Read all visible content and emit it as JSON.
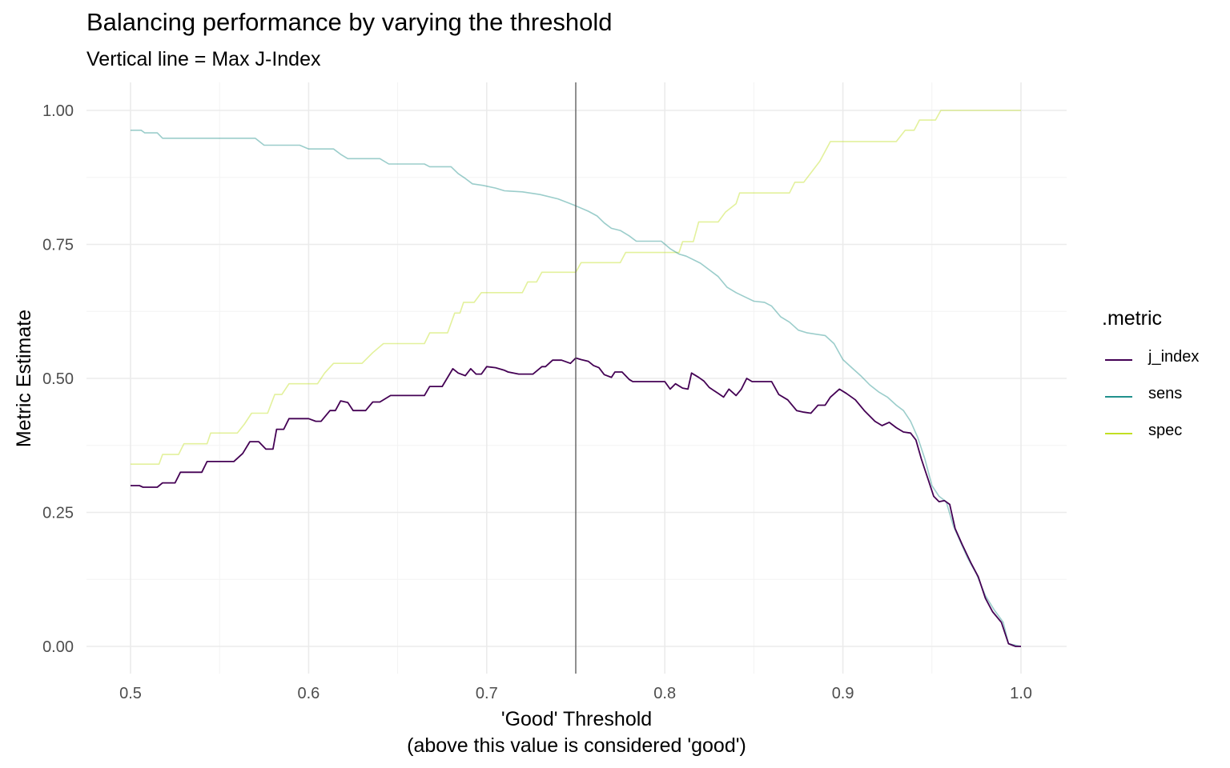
{
  "chart_data": {
    "type": "line",
    "title": "Balancing performance by varying the threshold",
    "subtitle": "Vertical line = Max J-Index",
    "xlabel": "'Good' Threshold",
    "xlabel_note": "(above this value is considered 'good')",
    "ylabel": "Metric Estimate",
    "xlim": [
      0.5,
      1.0
    ],
    "ylim": [
      0.0,
      1.0
    ],
    "x_ticks": [
      "0.5",
      "0.6",
      "0.7",
      "0.8",
      "0.9",
      "1.0"
    ],
    "y_ticks": [
      "0.00",
      "0.25",
      "0.50",
      "0.75",
      "1.00"
    ],
    "grid": true,
    "vline_x": 0.75,
    "legend": {
      "title": ".metric",
      "position": "right"
    },
    "series": [
      {
        "name": "j_index",
        "color": "#440154",
        "points": [
          [
            0.5,
            0.3
          ],
          [
            0.505,
            0.3
          ],
          [
            0.507,
            0.297
          ],
          [
            0.515,
            0.297
          ],
          [
            0.518,
            0.305
          ],
          [
            0.525,
            0.305
          ],
          [
            0.528,
            0.325
          ],
          [
            0.54,
            0.325
          ],
          [
            0.543,
            0.345
          ],
          [
            0.558,
            0.345
          ],
          [
            0.563,
            0.36
          ],
          [
            0.567,
            0.382
          ],
          [
            0.572,
            0.382
          ],
          [
            0.576,
            0.368
          ],
          [
            0.58,
            0.368
          ],
          [
            0.582,
            0.405
          ],
          [
            0.586,
            0.405
          ],
          [
            0.589,
            0.425
          ],
          [
            0.6,
            0.425
          ],
          [
            0.604,
            0.42
          ],
          [
            0.607,
            0.42
          ],
          [
            0.612,
            0.44
          ],
          [
            0.615,
            0.44
          ],
          [
            0.618,
            0.458
          ],
          [
            0.622,
            0.455
          ],
          [
            0.625,
            0.44
          ],
          [
            0.632,
            0.44
          ],
          [
            0.636,
            0.456
          ],
          [
            0.64,
            0.456
          ],
          [
            0.646,
            0.468
          ],
          [
            0.665,
            0.468
          ],
          [
            0.668,
            0.485
          ],
          [
            0.675,
            0.485
          ],
          [
            0.681,
            0.518
          ],
          [
            0.684,
            0.51
          ],
          [
            0.688,
            0.505
          ],
          [
            0.691,
            0.518
          ],
          [
            0.694,
            0.508
          ],
          [
            0.697,
            0.508
          ],
          [
            0.7,
            0.522
          ],
          [
            0.705,
            0.52
          ],
          [
            0.71,
            0.515
          ],
          [
            0.712,
            0.512
          ],
          [
            0.718,
            0.508
          ],
          [
            0.726,
            0.508
          ],
          [
            0.731,
            0.522
          ],
          [
            0.733,
            0.522
          ],
          [
            0.737,
            0.534
          ],
          [
            0.742,
            0.534
          ],
          [
            0.747,
            0.528
          ],
          [
            0.75,
            0.538
          ],
          [
            0.753,
            0.535
          ],
          [
            0.757,
            0.532
          ],
          [
            0.76,
            0.524
          ],
          [
            0.763,
            0.52
          ],
          [
            0.766,
            0.507
          ],
          [
            0.77,
            0.502
          ],
          [
            0.772,
            0.512
          ],
          [
            0.776,
            0.512
          ],
          [
            0.78,
            0.498
          ],
          [
            0.782,
            0.494
          ],
          [
            0.8,
            0.494
          ],
          [
            0.803,
            0.48
          ],
          [
            0.806,
            0.49
          ],
          [
            0.81,
            0.482
          ],
          [
            0.813,
            0.48
          ],
          [
            0.815,
            0.51
          ],
          [
            0.819,
            0.502
          ],
          [
            0.822,
            0.495
          ],
          [
            0.825,
            0.483
          ],
          [
            0.83,
            0.472
          ],
          [
            0.833,
            0.465
          ],
          [
            0.836,
            0.48
          ],
          [
            0.84,
            0.468
          ],
          [
            0.843,
            0.48
          ],
          [
            0.846,
            0.5
          ],
          [
            0.849,
            0.494
          ],
          [
            0.86,
            0.494
          ],
          [
            0.864,
            0.47
          ],
          [
            0.869,
            0.46
          ],
          [
            0.874,
            0.44
          ],
          [
            0.878,
            0.437
          ],
          [
            0.882,
            0.435
          ],
          [
            0.886,
            0.45
          ],
          [
            0.89,
            0.45
          ],
          [
            0.893,
            0.465
          ],
          [
            0.898,
            0.48
          ],
          [
            0.902,
            0.472
          ],
          [
            0.907,
            0.46
          ],
          [
            0.912,
            0.44
          ],
          [
            0.918,
            0.42
          ],
          [
            0.922,
            0.412
          ],
          [
            0.926,
            0.418
          ],
          [
            0.93,
            0.408
          ],
          [
            0.934,
            0.4
          ],
          [
            0.938,
            0.398
          ],
          [
            0.941,
            0.385
          ],
          [
            0.944,
            0.35
          ],
          [
            0.946,
            0.33
          ],
          [
            0.948,
            0.31
          ],
          [
            0.951,
            0.28
          ],
          [
            0.954,
            0.27
          ],
          [
            0.957,
            0.272
          ],
          [
            0.96,
            0.265
          ],
          [
            0.963,
            0.22
          ],
          [
            0.967,
            0.19
          ],
          [
            0.972,
            0.155
          ],
          [
            0.976,
            0.13
          ],
          [
            0.98,
            0.09
          ],
          [
            0.984,
            0.065
          ],
          [
            0.989,
            0.045
          ],
          [
            0.993,
            0.005
          ],
          [
            0.997,
            0.0
          ],
          [
            1.0,
            0.0
          ]
        ]
      },
      {
        "name": "sens",
        "color": "#21908c",
        "points": [
          [
            0.5,
            0.963
          ],
          [
            0.506,
            0.963
          ],
          [
            0.508,
            0.958
          ],
          [
            0.515,
            0.958
          ],
          [
            0.518,
            0.948
          ],
          [
            0.57,
            0.948
          ],
          [
            0.575,
            0.935
          ],
          [
            0.595,
            0.935
          ],
          [
            0.6,
            0.928
          ],
          [
            0.614,
            0.928
          ],
          [
            0.618,
            0.918
          ],
          [
            0.622,
            0.91
          ],
          [
            0.64,
            0.91
          ],
          [
            0.645,
            0.9
          ],
          [
            0.665,
            0.9
          ],
          [
            0.668,
            0.895
          ],
          [
            0.68,
            0.895
          ],
          [
            0.684,
            0.882
          ],
          [
            0.688,
            0.873
          ],
          [
            0.692,
            0.863
          ],
          [
            0.698,
            0.86
          ],
          [
            0.705,
            0.855
          ],
          [
            0.71,
            0.85
          ],
          [
            0.72,
            0.848
          ],
          [
            0.73,
            0.843
          ],
          [
            0.74,
            0.835
          ],
          [
            0.747,
            0.826
          ],
          [
            0.75,
            0.822
          ],
          [
            0.757,
            0.812
          ],
          [
            0.762,
            0.803
          ],
          [
            0.766,
            0.79
          ],
          [
            0.77,
            0.78
          ],
          [
            0.775,
            0.776
          ],
          [
            0.78,
            0.766
          ],
          [
            0.784,
            0.756
          ],
          [
            0.798,
            0.756
          ],
          [
            0.803,
            0.742
          ],
          [
            0.808,
            0.732
          ],
          [
            0.812,
            0.728
          ],
          [
            0.82,
            0.715
          ],
          [
            0.83,
            0.69
          ],
          [
            0.835,
            0.67
          ],
          [
            0.84,
            0.66
          ],
          [
            0.845,
            0.652
          ],
          [
            0.85,
            0.644
          ],
          [
            0.856,
            0.642
          ],
          [
            0.86,
            0.635
          ],
          [
            0.865,
            0.615
          ],
          [
            0.87,
            0.605
          ],
          [
            0.875,
            0.59
          ],
          [
            0.88,
            0.585
          ],
          [
            0.89,
            0.58
          ],
          [
            0.895,
            0.565
          ],
          [
            0.9,
            0.535
          ],
          [
            0.905,
            0.52
          ],
          [
            0.91,
            0.505
          ],
          [
            0.915,
            0.488
          ],
          [
            0.92,
            0.475
          ],
          [
            0.925,
            0.465
          ],
          [
            0.93,
            0.45
          ],
          [
            0.934,
            0.44
          ],
          [
            0.938,
            0.42
          ],
          [
            0.942,
            0.39
          ],
          [
            0.946,
            0.35
          ],
          [
            0.95,
            0.3
          ],
          [
            0.954,
            0.28
          ],
          [
            0.958,
            0.27
          ],
          [
            0.962,
            0.225
          ],
          [
            0.966,
            0.195
          ],
          [
            0.97,
            0.165
          ],
          [
            0.975,
            0.135
          ],
          [
            0.98,
            0.095
          ],
          [
            0.985,
            0.068
          ],
          [
            0.99,
            0.045
          ],
          [
            0.993,
            0.005
          ],
          [
            1.0,
            0.0
          ]
        ]
      },
      {
        "name": "spec",
        "color": "#c2df23",
        "points": [
          [
            0.5,
            0.34
          ],
          [
            0.516,
            0.34
          ],
          [
            0.518,
            0.358
          ],
          [
            0.527,
            0.358
          ],
          [
            0.53,
            0.378
          ],
          [
            0.543,
            0.378
          ],
          [
            0.545,
            0.398
          ],
          [
            0.56,
            0.398
          ],
          [
            0.564,
            0.415
          ],
          [
            0.568,
            0.435
          ],
          [
            0.577,
            0.435
          ],
          [
            0.581,
            0.47
          ],
          [
            0.585,
            0.47
          ],
          [
            0.589,
            0.49
          ],
          [
            0.605,
            0.49
          ],
          [
            0.609,
            0.51
          ],
          [
            0.614,
            0.528
          ],
          [
            0.63,
            0.528
          ],
          [
            0.636,
            0.548
          ],
          [
            0.642,
            0.565
          ],
          [
            0.665,
            0.565
          ],
          [
            0.668,
            0.585
          ],
          [
            0.678,
            0.585
          ],
          [
            0.682,
            0.622
          ],
          [
            0.685,
            0.622
          ],
          [
            0.687,
            0.642
          ],
          [
            0.693,
            0.642
          ],
          [
            0.697,
            0.66
          ],
          [
            0.72,
            0.66
          ],
          [
            0.723,
            0.68
          ],
          [
            0.728,
            0.68
          ],
          [
            0.731,
            0.698
          ],
          [
            0.75,
            0.698
          ],
          [
            0.753,
            0.716
          ],
          [
            0.775,
            0.716
          ],
          [
            0.778,
            0.735
          ],
          [
            0.808,
            0.735
          ],
          [
            0.81,
            0.755
          ],
          [
            0.816,
            0.755
          ],
          [
            0.819,
            0.792
          ],
          [
            0.83,
            0.792
          ],
          [
            0.834,
            0.81
          ],
          [
            0.84,
            0.826
          ],
          [
            0.842,
            0.846
          ],
          [
            0.87,
            0.846
          ],
          [
            0.873,
            0.866
          ],
          [
            0.878,
            0.866
          ],
          [
            0.887,
            0.905
          ],
          [
            0.893,
            0.942
          ],
          [
            0.93,
            0.942
          ],
          [
            0.935,
            0.963
          ],
          [
            0.94,
            0.963
          ],
          [
            0.943,
            0.982
          ],
          [
            0.952,
            0.982
          ],
          [
            0.955,
            1.0
          ],
          [
            1.0,
            1.0
          ]
        ]
      }
    ]
  }
}
